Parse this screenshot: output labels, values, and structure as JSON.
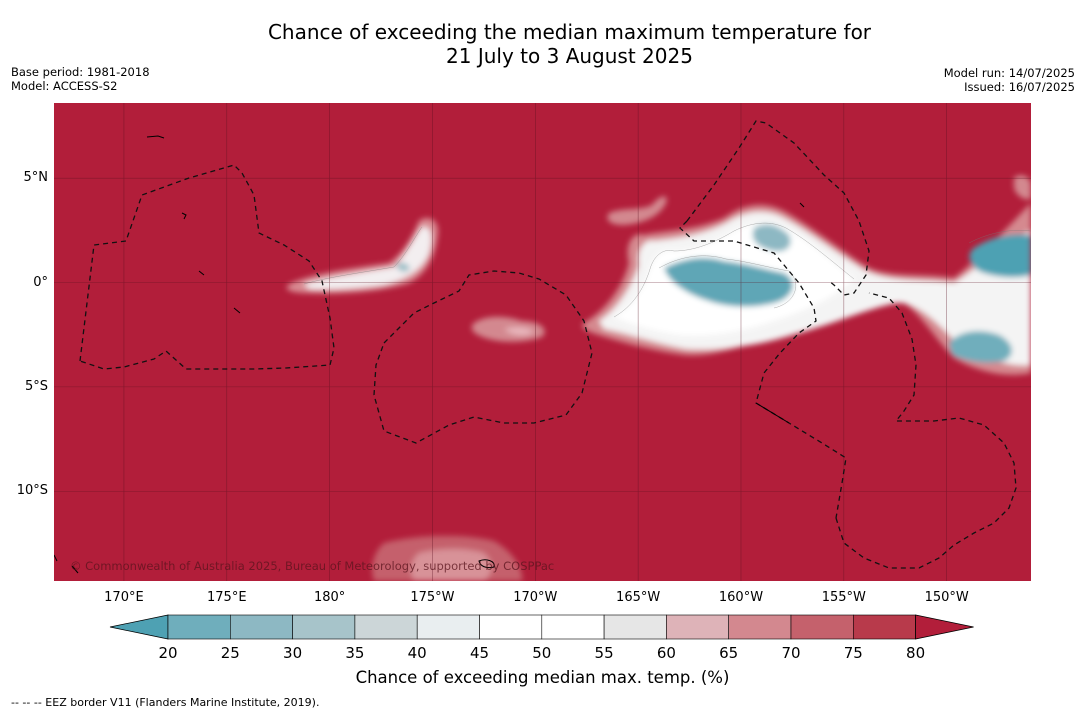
{
  "title_line1": "Chance of exceeding the median maximum temperature for",
  "title_line2": "21 July to 3 August 2025",
  "meta_left": {
    "base_period": "Base period: 1981-2018",
    "model": "Model: ACCESS-S2"
  },
  "meta_right": {
    "model_run": "Model run: 14/07/2025",
    "issued": "Issued: 16/07/2025"
  },
  "map": {
    "lat_labels": [
      {
        "text": "5°N",
        "lat": 5
      },
      {
        "text": "0°",
        "lat": 0
      },
      {
        "text": "5°S",
        "lat": -5
      },
      {
        "text": "10°S",
        "lat": -10
      }
    ],
    "lon_labels": [
      {
        "text": "170°E",
        "lon": 170
      },
      {
        "text": "175°E",
        "lon": 175
      },
      {
        "text": "180°",
        "lon": 180
      },
      {
        "text": "175°W",
        "lon": 185
      },
      {
        "text": "170°W",
        "lon": 190
      },
      {
        "text": "165°W",
        "lon": 195
      },
      {
        "text": "160°W",
        "lon": 200
      },
      {
        "text": "155°W",
        "lon": 205
      },
      {
        "text": "150°W",
        "lon": 210
      }
    ],
    "lon_range": [
      166.6,
      214.1
    ],
    "lat_range": [
      -14.3,
      8.6
    ],
    "background_probability": 80,
    "copyright": "© Commonwealth of Australia 2025, Bureau of Meteorology, supported by COSPPac"
  },
  "colorbar": {
    "ticks": [
      "20",
      "25",
      "30",
      "35",
      "40",
      "45",
      "50",
      "55",
      "60",
      "65",
      "70",
      "75",
      "80"
    ],
    "colors": [
      "#5fa6b6",
      "#6faebc",
      "#8db8c3",
      "#a7c4ca",
      "#ccd6d8",
      "#e9eef0",
      "#ffffff",
      "#ffffff",
      "#e6e6e6",
      "#deb3b8",
      "#d3888f",
      "#c5616c",
      "#b83a4b"
    ],
    "under_color": "#4ea1b3",
    "over_color": "#b21e3a",
    "label": "Chance of exceeding median max. temp. (%)"
  },
  "footnote": "--  --  -- EEZ border V11 (Flanders Marine Institute, 2019)."
}
